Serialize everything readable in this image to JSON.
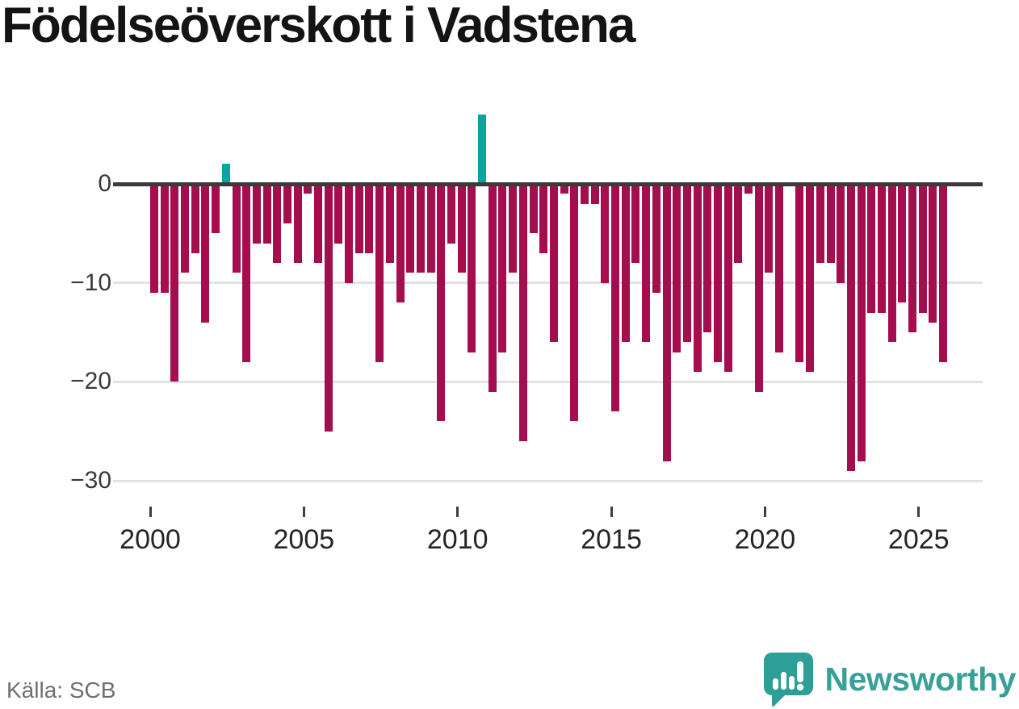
{
  "title": "Födelseöverskott i Vadstena",
  "source_label": "Källa: SCB",
  "brand": {
    "name": "Newsworthy",
    "color": "#38a098"
  },
  "axes": {
    "y_tick_labels": [
      "0",
      "−10",
      "−20",
      "−30"
    ],
    "x_tick_labels": [
      "2000",
      "2005",
      "2010",
      "2015",
      "2020",
      "2025"
    ]
  },
  "chart_data": {
    "type": "bar",
    "title": "Födelseöverskott i Vadstena",
    "xlabel": "",
    "ylabel": "",
    "frequency": "tertial (3 per year)",
    "ylim": [
      -30.5,
      8
    ],
    "y_ticks": [
      0,
      -10,
      -20,
      -30
    ],
    "x_year_ticks": [
      2000,
      2005,
      2010,
      2015,
      2020,
      2025
    ],
    "grid": "horizontal",
    "legend": "none",
    "colors": {
      "positive_bar": "#0ba4a0",
      "negative_bar": "#a40d4e",
      "zero_line": "#3a3a3a",
      "gridline": "#e3e3e3"
    },
    "x": [
      "2000 T1",
      "2000 T2",
      "2000 T3",
      "2001 T1",
      "2001 T2",
      "2001 T3",
      "2002 T1",
      "2002 T2",
      "2002 T3",
      "2003 T1",
      "2003 T2",
      "2003 T3",
      "2004 T1",
      "2004 T2",
      "2004 T3",
      "2005 T1",
      "2005 T2",
      "2005 T3",
      "2006 T1",
      "2006 T2",
      "2006 T3",
      "2007 T1",
      "2007 T2",
      "2007 T3",
      "2008 T1",
      "2008 T2",
      "2008 T3",
      "2009 T1",
      "2009 T2",
      "2009 T3",
      "2010 T1",
      "2010 T2",
      "2010 T3",
      "2011 T1",
      "2011 T2",
      "2011 T3",
      "2012 T1",
      "2012 T2",
      "2012 T3",
      "2013 T1",
      "2013 T2",
      "2013 T3",
      "2014 T1",
      "2014 T2",
      "2014 T3",
      "2015 T1",
      "2015 T2",
      "2015 T3",
      "2016 T1",
      "2016 T2",
      "2016 T3",
      "2017 T1",
      "2017 T2",
      "2017 T3",
      "2018 T1",
      "2018 T2",
      "2018 T3",
      "2019 T1",
      "2019 T2",
      "2019 T3",
      "2020 T1",
      "2020 T2",
      "2020 T3",
      "2021 T1",
      "2021 T2",
      "2021 T3",
      "2022 T1",
      "2022 T2",
      "2022 T3",
      "2023 T1",
      "2023 T2",
      "2023 T3",
      "2024 T1",
      "2024 T2",
      "2024 T3",
      "2025 T1",
      "2025 T2",
      "2025 T3"
    ],
    "values": [
      -11,
      -11,
      -20,
      -9,
      -7,
      -14,
      -5,
      2,
      -9,
      -18,
      -6,
      -6,
      -8,
      -4,
      -8,
      -1,
      -8,
      -25,
      -6,
      -10,
      -7,
      -7,
      -18,
      -8,
      -12,
      -9,
      -9,
      -9,
      -24,
      -6,
      -9,
      -17,
      7,
      -21,
      -17,
      -9,
      -26,
      -5,
      -7,
      -16,
      -1,
      -24,
      -2,
      -2,
      -10,
      -23,
      -16,
      -8,
      -16,
      -11,
      -28,
      -17,
      -16,
      -19,
      -15,
      -18,
      -19,
      -8,
      -1,
      -21,
      -9,
      -17,
      0,
      -18,
      -19,
      -8,
      -8,
      -10,
      -29,
      -28,
      -13,
      -13,
      -16,
      -12,
      -15,
      -13,
      -14,
      -18
    ]
  }
}
